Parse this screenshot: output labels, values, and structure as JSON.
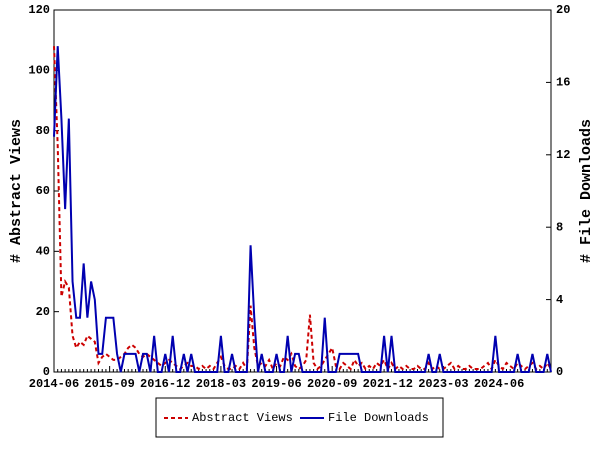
{
  "chart_data": {
    "type": "line",
    "categories": [
      "2014-06",
      null,
      null,
      null,
      null,
      null,
      null,
      null,
      null,
      null,
      null,
      null,
      null,
      null,
      null,
      "2015-09",
      null,
      null,
      null,
      null,
      null,
      null,
      null,
      null,
      null,
      null,
      null,
      null,
      null,
      null,
      "2016-12",
      null,
      null,
      null,
      null,
      null,
      null,
      null,
      null,
      null,
      null,
      null,
      null,
      null,
      null,
      "2018-03",
      null,
      null,
      null,
      null,
      null,
      null,
      null,
      null,
      null,
      null,
      null,
      null,
      null,
      null,
      "2019-06",
      null,
      null,
      null,
      null,
      null,
      null,
      null,
      null,
      null,
      null,
      null,
      null,
      null,
      null,
      "2020-09",
      null,
      null,
      null,
      null,
      null,
      null,
      null,
      null,
      null,
      null,
      null,
      null,
      null,
      null,
      "2021-12",
      null,
      null,
      null,
      null,
      null,
      null,
      null,
      null,
      null,
      null,
      null,
      null,
      null,
      null,
      "2023-03",
      null,
      null,
      null,
      null,
      null,
      null,
      null,
      null,
      null,
      null,
      null,
      null,
      null,
      null,
      "2024-06",
      null,
      null,
      null,
      null,
      null,
      null,
      null,
      null,
      null,
      null,
      null,
      null,
      null,
      null
    ],
    "y_label": "# Abstract Views",
    "y2_label": "# File Downloads",
    "ylim": [
      0,
      120
    ],
    "yticks": [
      0,
      20,
      40,
      60,
      80,
      100,
      120
    ],
    "y2lim": [
      0,
      20
    ],
    "y2ticks": [
      0,
      4,
      8,
      12,
      16,
      20
    ],
    "legend": "bottom",
    "series": [
      {
        "name": "Abstract Views",
        "color": "#cc0000",
        "dashed": true,
        "axis": "y",
        "values": [
          108,
          75,
          25,
          30,
          28,
          12,
          8,
          10,
          9,
          12,
          11,
          10,
          3,
          5,
          6,
          5,
          4,
          4,
          5,
          6,
          8,
          9,
          8,
          6,
          5,
          6,
          5,
          4,
          3,
          2,
          3,
          4,
          3,
          2,
          1,
          2,
          3,
          2,
          2,
          1,
          2,
          1,
          2,
          1,
          3,
          5,
          2,
          1,
          1,
          2,
          1,
          3,
          1,
          22,
          8,
          2,
          3,
          2,
          4,
          1,
          3,
          2,
          5,
          4,
          6,
          2,
          1,
          2,
          4,
          19,
          3,
          1,
          2,
          4,
          6,
          8,
          2,
          1,
          3,
          2,
          1,
          4,
          2,
          3,
          1,
          2,
          1,
          3,
          2,
          4,
          1,
          3,
          1,
          2,
          1,
          2,
          1,
          1,
          2,
          1,
          1,
          3,
          1,
          2,
          1,
          1,
          2,
          3,
          1,
          2,
          1,
          1,
          2,
          1,
          1,
          1,
          2,
          3,
          1,
          4,
          2,
          1,
          3,
          2,
          1,
          3,
          2,
          1,
          2,
          3,
          1,
          2,
          1,
          3,
          1
        ]
      },
      {
        "name": "File Downloads",
        "color": "#0000b0",
        "dashed": false,
        "axis": "y2",
        "values": [
          13,
          18,
          14,
          9,
          14,
          5,
          3,
          3,
          6,
          3,
          5,
          4,
          1,
          1,
          3,
          3,
          3,
          1,
          0,
          1,
          1,
          1,
          1,
          0,
          1,
          1,
          0,
          2,
          0,
          0,
          1,
          0,
          2,
          0,
          0,
          1,
          0,
          1,
          0,
          0,
          0,
          0,
          0,
          0,
          0,
          2,
          0,
          0,
          1,
          0,
          0,
          0,
          0,
          7,
          3,
          0,
          1,
          0,
          0,
          0,
          1,
          0,
          0,
          2,
          0,
          1,
          1,
          0,
          0,
          0,
          0,
          0,
          0,
          3,
          0,
          0,
          0,
          1,
          1,
          1,
          1,
          1,
          1,
          0,
          0,
          0,
          0,
          0,
          0,
          2,
          0,
          2,
          0,
          0,
          0,
          0,
          0,
          0,
          0,
          0,
          0,
          1,
          0,
          0,
          1,
          0,
          0,
          0,
          0,
          0,
          0,
          0,
          0,
          0,
          0,
          0,
          0,
          0,
          0,
          2,
          0,
          0,
          0,
          0,
          0,
          1,
          0,
          0,
          0,
          1,
          0,
          0,
          0,
          1,
          0
        ]
      }
    ]
  }
}
